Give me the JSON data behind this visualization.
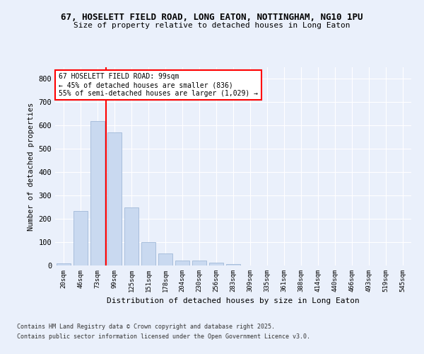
{
  "title1": "67, HOSELETT FIELD ROAD, LONG EATON, NOTTINGHAM, NG10 1PU",
  "title2": "Size of property relative to detached houses in Long Eaton",
  "xlabel": "Distribution of detached houses by size in Long Eaton",
  "ylabel": "Number of detached properties",
  "bar_labels": [
    "20sqm",
    "46sqm",
    "73sqm",
    "99sqm",
    "125sqm",
    "151sqm",
    "178sqm",
    "204sqm",
    "230sqm",
    "256sqm",
    "283sqm",
    "309sqm",
    "335sqm",
    "361sqm",
    "388sqm",
    "414sqm",
    "440sqm",
    "466sqm",
    "493sqm",
    "519sqm",
    "545sqm"
  ],
  "bar_values": [
    10,
    233,
    620,
    570,
    250,
    100,
    52,
    22,
    22,
    13,
    5,
    0,
    0,
    0,
    0,
    0,
    0,
    0,
    0,
    0,
    0
  ],
  "bar_color": "#c9d9f0",
  "bar_edgecolor": "#a0b8d8",
  "vline_color": "red",
  "annotation_text": "67 HOSELETT FIELD ROAD: 99sqm\n← 45% of detached houses are smaller (836)\n55% of semi-detached houses are larger (1,029) →",
  "annotation_box_color": "white",
  "annotation_box_edgecolor": "red",
  "ylim": [
    0,
    850
  ],
  "yticks": [
    0,
    100,
    200,
    300,
    400,
    500,
    600,
    700,
    800
  ],
  "footer1": "Contains HM Land Registry data © Crown copyright and database right 2025.",
  "footer2": "Contains public sector information licensed under the Open Government Licence v3.0.",
  "bg_color": "#eaf0fb",
  "plot_bg_color": "#eaf0fb"
}
